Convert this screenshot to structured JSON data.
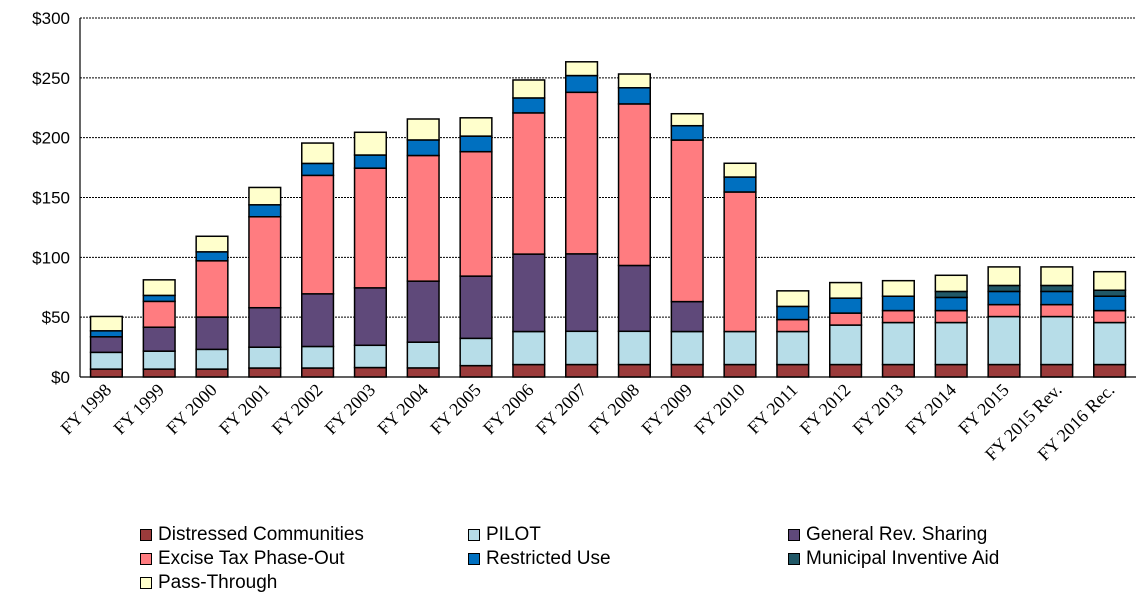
{
  "chart_data": {
    "type": "bar",
    "stacked": true,
    "categories": [
      "FY 1998",
      "FY 1999",
      "FY 2000",
      "FY 2001",
      "FY 2002",
      "FY 2003",
      "FY 2004",
      "FY 2005",
      "FY 2006",
      "FY 2007",
      "FY 2008",
      "FY 2009",
      "FY 2010",
      "FY 2011",
      "FY 2012",
      "FY 2013",
      "FY 2014",
      "FY 2015",
      "FY 2015 Rev.",
      "FY 2016 Rec."
    ],
    "ylim": [
      0,
      300
    ],
    "yticks": [
      0,
      50,
      100,
      150,
      200,
      250,
      300
    ],
    "ytick_labels": [
      "$0",
      "$50",
      "$100",
      "$150",
      "$200",
      "$250",
      "$300"
    ],
    "grid": "horizontal",
    "legend_position": "bottom",
    "series": [
      {
        "name": "Distressed Communities",
        "color": "#9b3b3b",
        "values": [
          6.6,
          6.6,
          6.6,
          7.5,
          7.5,
          7.9,
          7.6,
          9.5,
          10.4,
          10.4,
          10.4,
          10.4,
          10.4,
          10.4,
          10.4,
          10.4,
          10.4,
          10.4,
          10.4,
          10.4
        ]
      },
      {
        "name": "PILOT",
        "color": "#b7dde8",
        "values": [
          14,
          15,
          16.5,
          17.4,
          18,
          18.6,
          21.5,
          22.8,
          27.6,
          27.8,
          27.8,
          27.6,
          27.6,
          27.6,
          33,
          35.1,
          35.1,
          40.1,
          40.1,
          35.1
        ]
      },
      {
        "name": "General Rev. Sharing",
        "color": "#5f497a",
        "values": [
          13,
          20,
          27,
          33,
          44,
          48,
          51,
          52,
          64.7,
          64.7,
          55,
          25,
          0,
          0,
          0,
          0,
          0,
          0,
          0,
          0
        ]
      },
      {
        "name": "Excise Tax Phase-Out",
        "color": "#ff7c80",
        "values": [
          0,
          21.6,
          47,
          76,
          99,
          100,
          105,
          104,
          118,
          135,
          135,
          135,
          116.6,
          10,
          10,
          10,
          10,
          10,
          10,
          10
        ]
      },
      {
        "name": "Restricted Use",
        "color": "#0070c0",
        "values": [
          5,
          5,
          7.5,
          10,
          10,
          11,
          13,
          13,
          12.5,
          14,
          13.5,
          12,
          12.5,
          11,
          12.5,
          12,
          11,
          11,
          11,
          12
        ]
      },
      {
        "name": "Municipal Inventive Aid",
        "color": "#215867",
        "values": [
          0,
          0,
          0,
          0,
          0,
          0,
          0,
          0,
          0,
          0,
          0,
          0,
          0,
          0,
          0,
          0,
          5,
          5,
          5,
          5
        ]
      },
      {
        "name": "Pass-Through",
        "color": "#ffffcc",
        "values": [
          12,
          13,
          13,
          14.5,
          17,
          19,
          17.5,
          15.3,
          15,
          11.5,
          11.5,
          10,
          11.5,
          13,
          13,
          13,
          13.5,
          15.5,
          15.5,
          15.5
        ]
      }
    ]
  }
}
